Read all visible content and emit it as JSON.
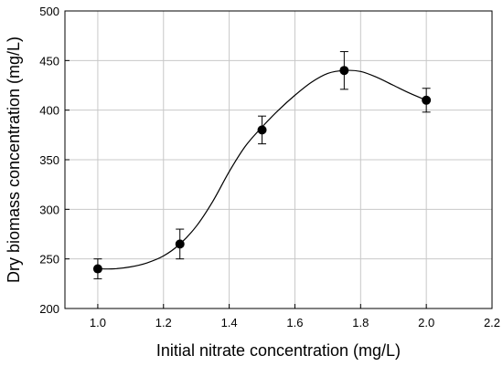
{
  "chart_data": {
    "type": "scatter",
    "xlabel": "Initial nitrate concentration (mg/L)",
    "ylabel": "Dry biomass concentration (mg/L)",
    "xlim": [
      0.9,
      2.2
    ],
    "ylim": [
      200,
      500
    ],
    "xticks": [
      1.0,
      1.2,
      1.4,
      1.6,
      1.8,
      2.0,
      2.2
    ],
    "xtick_labels": [
      "1.0",
      "1.2",
      "1.4",
      "1.6",
      "1.8",
      "2.0",
      "2.2"
    ],
    "yticks": [
      200,
      250,
      300,
      350,
      400,
      450,
      500
    ],
    "ytick_labels": [
      "200",
      "250",
      "300",
      "350",
      "400",
      "450",
      "500"
    ],
    "grid": true,
    "legend": "none",
    "series": [
      {
        "x": [
          1.0,
          1.25,
          1.5,
          1.75,
          2.0
        ],
        "y": [
          240,
          265,
          380,
          440,
          410
        ],
        "error_low": [
          230,
          250,
          366,
          421,
          398
        ],
        "error_high": [
          250,
          280,
          394,
          459,
          422
        ]
      }
    ],
    "fit_curve": {
      "x": [
        1.0,
        1.05,
        1.1,
        1.15,
        1.2,
        1.25,
        1.3,
        1.35,
        1.4,
        1.45,
        1.5,
        1.55,
        1.6,
        1.65,
        1.7,
        1.75,
        1.8,
        1.85,
        1.9,
        1.95,
        2.0
      ],
      "y": [
        240,
        240,
        242,
        246,
        253,
        265,
        283,
        308,
        338,
        364,
        383,
        400,
        415,
        428,
        437,
        440,
        439,
        433,
        425,
        417,
        410
      ]
    },
    "colors": {
      "marker": "#000000",
      "line": "#000000",
      "grid": "#c8c8c8",
      "axis": "#000000"
    }
  }
}
